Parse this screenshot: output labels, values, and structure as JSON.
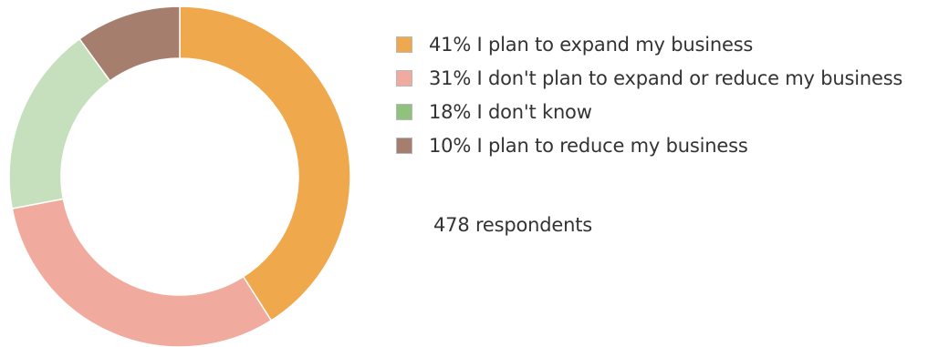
{
  "chart_data": {
    "type": "pie",
    "variant": "donut",
    "slices": [
      {
        "percent": 41,
        "label": "41% I plan to expand my business",
        "color": "#f0a84d"
      },
      {
        "percent": 31,
        "label": "31% I don't plan to expand or reduce my business",
        "color": "#f0aa9e"
      },
      {
        "percent": 18,
        "label": "18% I don't know",
        "color": "#c6dfbd"
      },
      {
        "percent": 10,
        "label": "10% I plan to reduce my business",
        "color": "#a67e6e"
      }
    ],
    "legend_swatch_colors": [
      "#f0a84d",
      "#f1aa9f",
      "#8fc27a",
      "#a67e6e"
    ],
    "legend_position": "right",
    "note": "478 respondents"
  }
}
